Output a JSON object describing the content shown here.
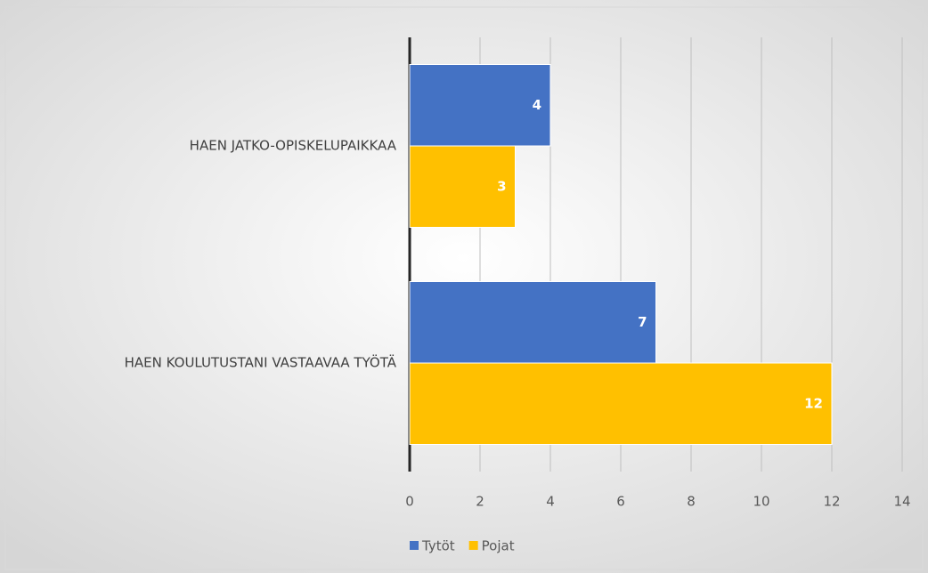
{
  "chart_data": {
    "type": "bar",
    "orientation": "horizontal",
    "categories": [
      "HAEN JATKO-OPISKELUPAIKKAA",
      "HAEN KOULUTUSTANI VASTAAVAA TYÖTÄ"
    ],
    "series": [
      {
        "name": "Tytöt",
        "color": "#4472c4",
        "values": [
          4,
          7
        ]
      },
      {
        "name": "Pojat",
        "color": "#ffc000",
        "values": [
          3,
          12
        ]
      }
    ],
    "xlim": [
      0,
      14
    ],
    "xticks": [
      0,
      2,
      4,
      6,
      8,
      10,
      12,
      14
    ],
    "grid": true,
    "legend": "bottom"
  }
}
